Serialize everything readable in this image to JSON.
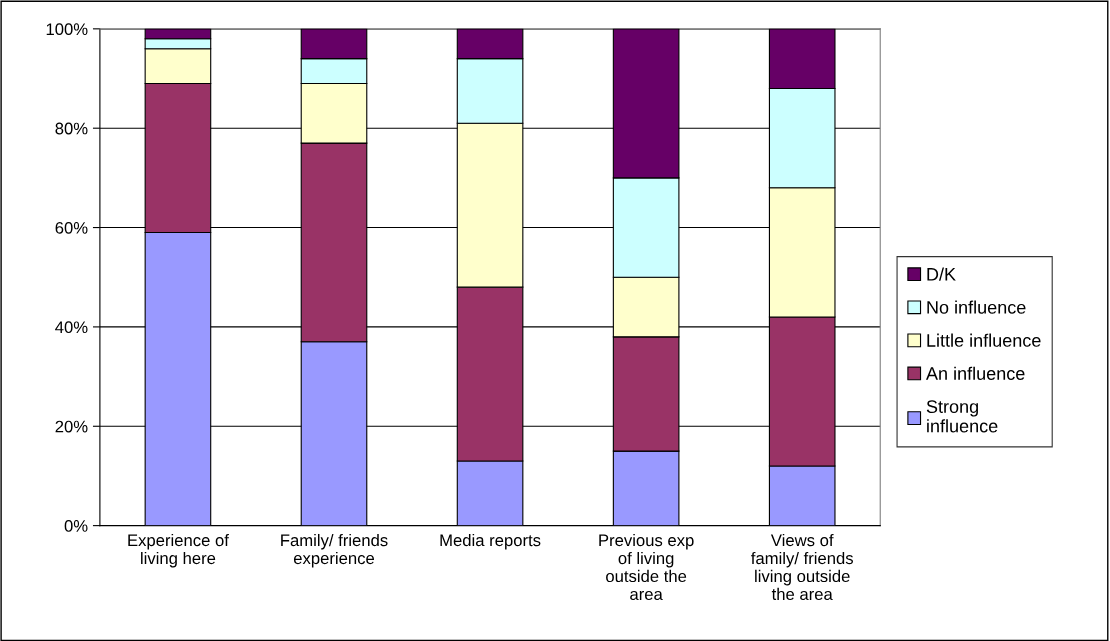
{
  "chart_data": {
    "type": "bar",
    "stacked": true,
    "categories": [
      "Experience of\nliving here",
      "Family/ friends\nexperience",
      "Media reports",
      "Previous exp\nof living\noutside the\narea",
      "Views of\nfamily/ friends\nliving outside\nthe area"
    ],
    "series": [
      {
        "name": "Strong\ninfluence",
        "color": "#9999ff",
        "values": [
          59,
          37,
          13,
          15,
          12
        ]
      },
      {
        "name": "An influence",
        "color": "#993366",
        "values": [
          30,
          40,
          35,
          23,
          30
        ]
      },
      {
        "name": "Little influence",
        "color": "#ffffcc",
        "values": [
          7,
          12,
          33,
          12,
          26
        ]
      },
      {
        "name": "No influence",
        "color": "#ccffff",
        "values": [
          2,
          5,
          13,
          20,
          20
        ]
      },
      {
        "name": "D/K",
        "color": "#660066",
        "values": [
          2,
          6,
          6,
          30,
          12
        ]
      }
    ],
    "ylim": [
      0,
      100
    ],
    "yticks": [
      {
        "value": 0,
        "label": "0%"
      },
      {
        "value": 20,
        "label": "20%"
      },
      {
        "value": 40,
        "label": "40%"
      },
      {
        "value": 60,
        "label": "60%"
      },
      {
        "value": 80,
        "label": "80%"
      },
      {
        "value": 100,
        "label": "100%"
      }
    ],
    "grid": "y",
    "legend": "right"
  }
}
